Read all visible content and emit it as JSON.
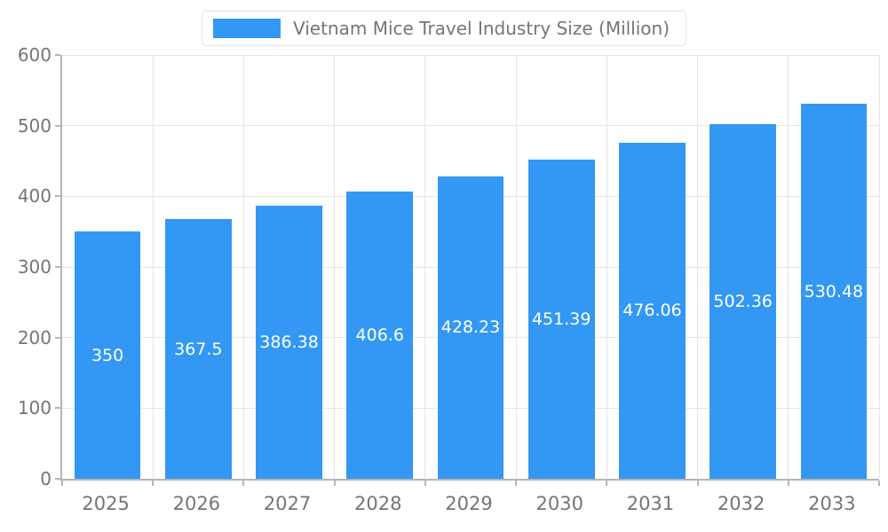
{
  "chart_data": {
    "type": "bar",
    "title": "Vietnam Mice Travel Industry Size (Million)",
    "categories": [
      "2025",
      "2026",
      "2027",
      "2028",
      "2029",
      "2030",
      "2031",
      "2032",
      "2033"
    ],
    "values": [
      350,
      367.5,
      386.38,
      406.6,
      428.23,
      451.39,
      476.06,
      502.36,
      530.48
    ],
    "value_labels": [
      "350",
      "367.5",
      "386.38",
      "406.6",
      "428.23",
      "451.39",
      "476.06",
      "502.36",
      "530.48"
    ],
    "xlabel": "",
    "ylabel": "",
    "ylim": [
      0,
      600
    ],
    "yticks": [
      0,
      100,
      200,
      300,
      400,
      500,
      600
    ],
    "grid": true,
    "legend_position": "top-center",
    "bar_color": "#3398f3",
    "value_label_color": "#ffffff",
    "axis_text_color": "#757575",
    "gridline_color": "#e6e6e6",
    "axis_line_color": "#b5b5b5"
  }
}
